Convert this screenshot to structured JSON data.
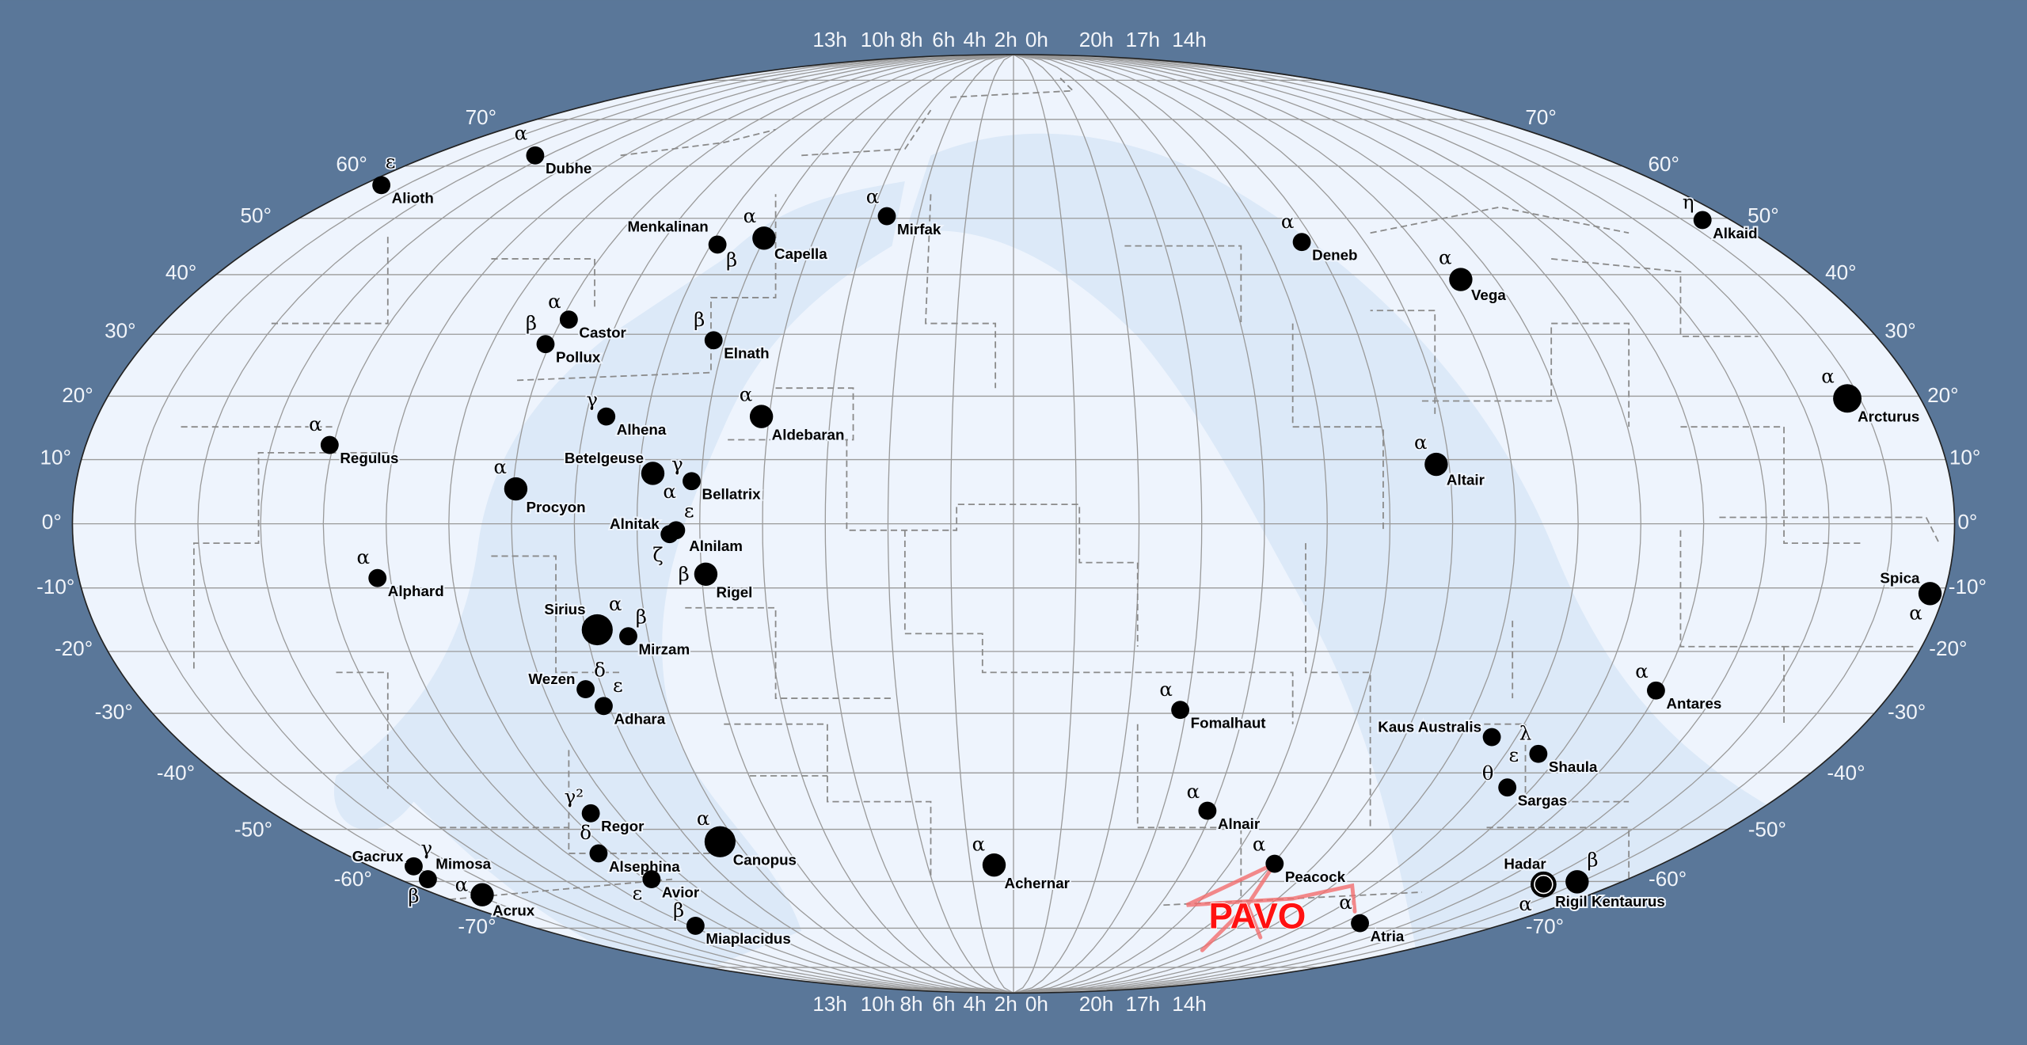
{
  "map": {
    "projection": "mollweide",
    "colors": {
      "background": "#5a7799",
      "sky": "#eef4fd",
      "milky_way": "#dce9f8",
      "star": "#000000",
      "grid": "#9a9a9a",
      "highlight": "#ff1111"
    },
    "hour_labels": [
      "13h",
      "10h",
      "8h",
      "6h",
      "4h",
      "2h",
      "0h",
      "20h",
      "17h",
      "14h"
    ],
    "dec_labels_left": [
      "70°",
      "60°",
      "50°",
      "40°",
      "30°",
      "20°",
      "10°",
      "0°",
      "-10°",
      "-20°",
      "-30°",
      "-40°",
      "-50°",
      "-60°",
      "-70°"
    ],
    "dec_labels_right": [
      "70°",
      "60°",
      "50°",
      "40°",
      "30°",
      "20°",
      "10°",
      "0°",
      "-10°",
      "-20°",
      "-30°",
      "-40°",
      "-50°",
      "-60°",
      "-70°"
    ],
    "highlighted_constellation": "PAVO",
    "stars": [
      {
        "name": "Dubhe",
        "greek": "α"
      },
      {
        "name": "Alioth",
        "greek": "ε"
      },
      {
        "name": "Mirfak",
        "greek": "α"
      },
      {
        "name": "Capella",
        "greek": "α"
      },
      {
        "name": "Menkalinan",
        "greek": "β"
      },
      {
        "name": "Deneb",
        "greek": "α"
      },
      {
        "name": "Alkaid",
        "greek": "η"
      },
      {
        "name": "Vega",
        "greek": "α"
      },
      {
        "name": "Castor",
        "greek": "α"
      },
      {
        "name": "Pollux",
        "greek": "β"
      },
      {
        "name": "Elnath",
        "greek": "β"
      },
      {
        "name": "Arcturus",
        "greek": "α"
      },
      {
        "name": "Alhena",
        "greek": "γ"
      },
      {
        "name": "Aldebaran",
        "greek": "α"
      },
      {
        "name": "Regulus",
        "greek": "α"
      },
      {
        "name": "Altair",
        "greek": "α"
      },
      {
        "name": "Betelgeuse",
        "greek": "α"
      },
      {
        "name": "Bellatrix",
        "greek": "γ"
      },
      {
        "name": "Procyon",
        "greek": "α"
      },
      {
        "name": "Alnitak",
        "greek": "ζ"
      },
      {
        "name": "Alnilam",
        "greek": "ε"
      },
      {
        "name": "Rigel",
        "greek": "β"
      },
      {
        "name": "Alphard",
        "greek": "α"
      },
      {
        "name": "Spica",
        "greek": "α"
      },
      {
        "name": "Sirius",
        "greek": "α"
      },
      {
        "name": "Mirzam",
        "greek": "β"
      },
      {
        "name": "Wezen",
        "greek": "δ"
      },
      {
        "name": "Adhara",
        "greek": "ε"
      },
      {
        "name": "Antares",
        "greek": "α"
      },
      {
        "name": "Fomalhaut",
        "greek": "α"
      },
      {
        "name": "Kaus Australis",
        "greek": "ε"
      },
      {
        "name": "Shaula",
        "greek": "λ"
      },
      {
        "name": "Sargas",
        "greek": "θ"
      },
      {
        "name": "Alnair",
        "greek": "α"
      },
      {
        "name": "Regor",
        "greek": "γ²"
      },
      {
        "name": "Alsephina",
        "greek": "δ"
      },
      {
        "name": "Canopus",
        "greek": "α"
      },
      {
        "name": "Achernar",
        "greek": "α"
      },
      {
        "name": "Peacock",
        "greek": "α"
      },
      {
        "name": "Gacrux",
        "greek": "γ"
      },
      {
        "name": "Mimosa",
        "greek": "β"
      },
      {
        "name": "Acrux",
        "greek": "α"
      },
      {
        "name": "Avior",
        "greek": "ε"
      },
      {
        "name": "Hadar",
        "greek": "α"
      },
      {
        "name": "Rigil Kentaurus",
        "greek": "β"
      },
      {
        "name": "Atria",
        "greek": "α"
      },
      {
        "name": "Miaplacidus",
        "greek": "β"
      }
    ]
  }
}
